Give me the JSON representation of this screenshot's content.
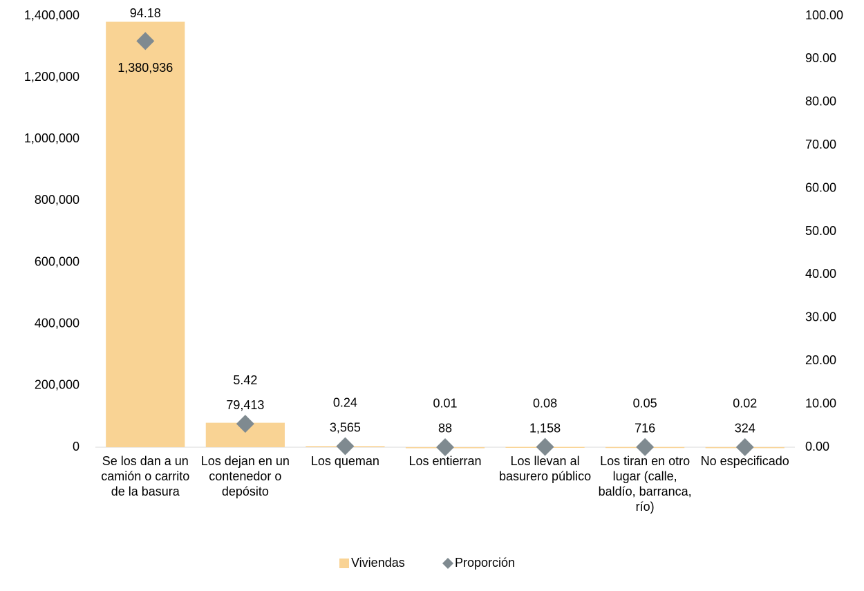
{
  "chart_data": {
    "type": "bar",
    "categories": [
      "Se los dan a un camión o carrito de la basura",
      "Los dejan en un contenedor o depósito",
      "Los queman",
      "Los entierran",
      "Los llevan al basurero público",
      "Los tiran en otro lugar (calle, baldío, barranca, río)",
      "No especificado"
    ],
    "series": [
      {
        "name": "Viviendas",
        "color": "#f9d394",
        "type": "bar",
        "values": [
          1380936,
          79413,
          3565,
          88,
          1158,
          716,
          324
        ],
        "value_labels": [
          "1,380,936",
          "79,413",
          "3,565",
          "88",
          "1,158",
          "716",
          "324"
        ]
      },
      {
        "name": "Proporción",
        "color": "#7f8a90",
        "type": "scatter",
        "axis": "y2",
        "values": [
          94.18,
          5.42,
          0.24,
          0.01,
          0.08,
          0.05,
          0.02
        ]
      }
    ],
    "ylim": [
      0,
      1400000
    ],
    "yticks": [
      0,
      {
        "value": 200000,
        "label": "200,000"
      },
      {
        "value": 400000,
        "label": "400,000"
      },
      {
        "value": 600000,
        "label": "600,000"
      },
      {
        "value": 800000,
        "label": "800,000"
      },
      {
        "value": 1000000,
        "label": "1,000,000"
      },
      {
        "value": 1200000,
        "label": "1,200,000"
      },
      {
        "value": 1400000,
        "label": "1,400,000"
      }
    ],
    "y2lim": [
      0,
      100
    ],
    "y2ticks": [
      {
        "value": 0,
        "label": "0.00"
      },
      {
        "value": 10,
        "label": "10.00"
      },
      {
        "value": 20,
        "label": "20.00"
      },
      {
        "value": 30,
        "label": "30.00"
      },
      {
        "value": 40,
        "label": "40.00"
      },
      {
        "value": 50,
        "label": "50.00"
      },
      {
        "value": 60,
        "label": "60.00"
      },
      {
        "value": 70,
        "label": "70.00"
      },
      {
        "value": 80,
        "label": "80.00"
      },
      {
        "value": 90,
        "label": "90.00"
      },
      {
        "value": 100,
        "label": "100.00"
      }
    ],
    "legend": "bottom"
  }
}
